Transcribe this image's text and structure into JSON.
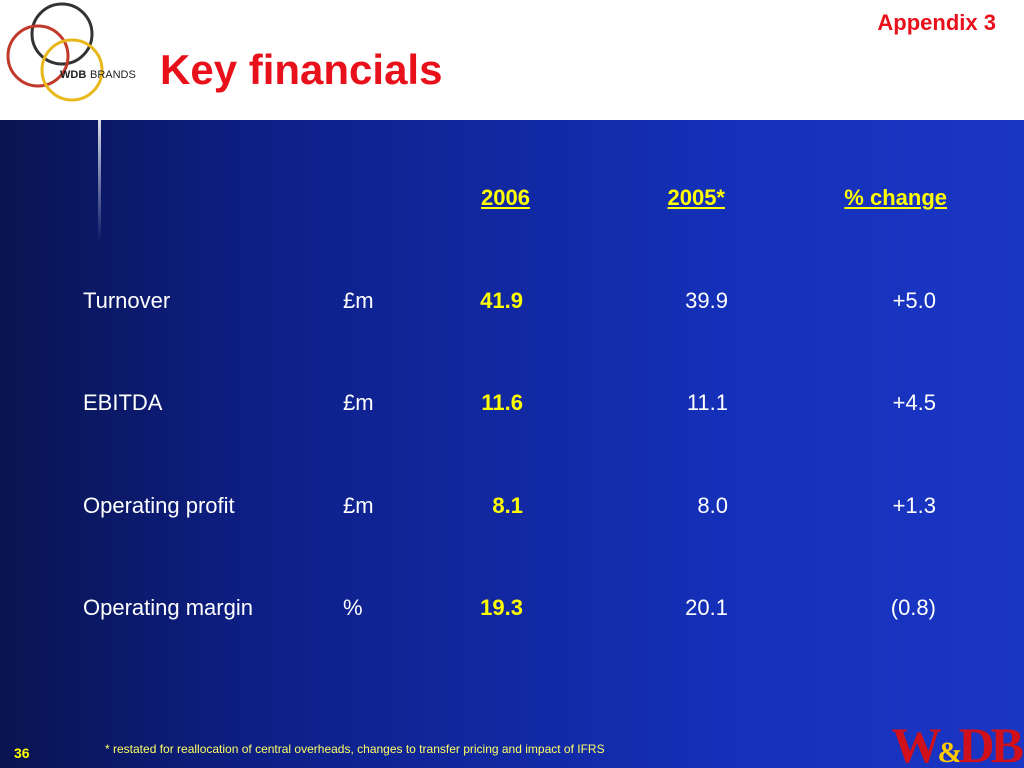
{
  "header": {
    "title": "Key financials",
    "appendix": "Appendix 3",
    "logo": {
      "wdb": "WDB",
      "brands": "BRANDS"
    }
  },
  "table": {
    "columns": [
      "2006",
      "2005*",
      "% change"
    ],
    "rows": [
      [
        "Turnover",
        "£m",
        "41.9",
        "39.9",
        "+5.0"
      ],
      [
        "EBITDA",
        "£m",
        "11.6",
        "11.1",
        "+4.5"
      ],
      [
        "Operating profit",
        "£m",
        "8.1",
        "8.0",
        "+1.3"
      ],
      [
        "Operating margin",
        "%",
        "19.3",
        "20.1",
        "(0.8)"
      ]
    ]
  },
  "footnote": "* restated for reallocation of central overheads, changes to transfer pricing and impact of IFRS",
  "page_number": "36",
  "brand_mark": {
    "left": "W",
    "amp": "&",
    "right": "DB"
  }
}
